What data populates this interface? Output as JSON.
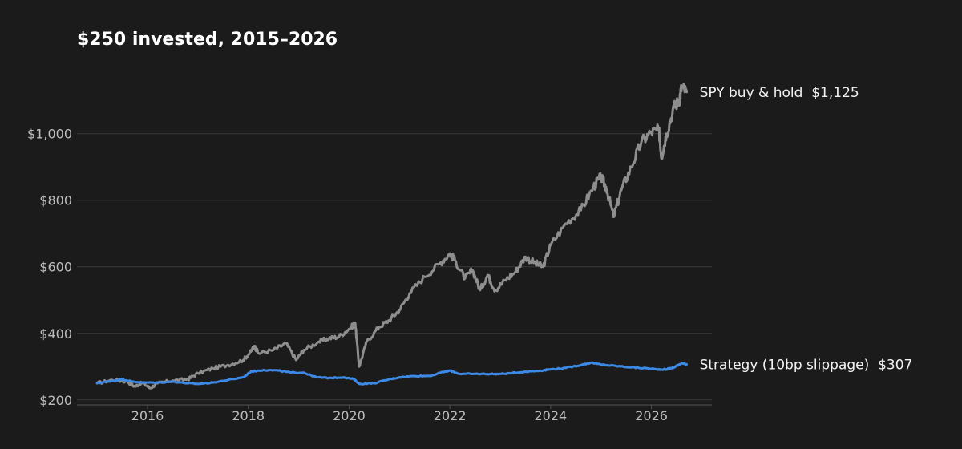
{
  "chart_data": {
    "type": "line",
    "title": "$250 invested, 2015–2026",
    "xlabel": "",
    "ylabel": "",
    "xlim": [
      2014.6,
      2027.2
    ],
    "ylim": [
      185,
      1180
    ],
    "grid": "horizontal",
    "legend": "inline-right",
    "y_ticks": [
      {
        "value": 200,
        "label": "$200"
      },
      {
        "value": 400,
        "label": "$400"
      },
      {
        "value": 600,
        "label": "$600"
      },
      {
        "value": 800,
        "label": "$800"
      },
      {
        "value": 1000,
        "label": "$1,000"
      }
    ],
    "x_ticks": [
      {
        "value": 2016,
        "label": "2016"
      },
      {
        "value": 2018,
        "label": "2018"
      },
      {
        "value": 2020,
        "label": "2020"
      },
      {
        "value": 2022,
        "label": "2022"
      },
      {
        "value": 2024,
        "label": "2024"
      },
      {
        "value": 2026,
        "label": "2026"
      }
    ],
    "series": [
      {
        "name": "SPY buy & hold",
        "end_label": "$1,125",
        "color": "#8e8e8e",
        "points": [
          [
            2015.0,
            250
          ],
          [
            2015.3,
            260
          ],
          [
            2015.6,
            255
          ],
          [
            2015.75,
            240
          ],
          [
            2015.9,
            252
          ],
          [
            2016.05,
            235
          ],
          [
            2016.2,
            250
          ],
          [
            2016.5,
            258
          ],
          [
            2016.8,
            262
          ],
          [
            2017.0,
            280
          ],
          [
            2017.3,
            295
          ],
          [
            2017.6,
            305
          ],
          [
            2017.9,
            320
          ],
          [
            2018.05,
            345
          ],
          [
            2018.12,
            362
          ],
          [
            2018.2,
            340
          ],
          [
            2018.5,
            350
          ],
          [
            2018.75,
            370
          ],
          [
            2018.95,
            320
          ],
          [
            2019.1,
            350
          ],
          [
            2019.4,
            375
          ],
          [
            2019.6,
            385
          ],
          [
            2019.8,
            390
          ],
          [
            2020.05,
            420
          ],
          [
            2020.12,
            432
          ],
          [
            2020.2,
            300
          ],
          [
            2020.35,
            375
          ],
          [
            2020.6,
            420
          ],
          [
            2020.8,
            440
          ],
          [
            2021.0,
            470
          ],
          [
            2021.2,
            520
          ],
          [
            2021.5,
            570
          ],
          [
            2021.8,
            610
          ],
          [
            2022.0,
            640
          ],
          [
            2022.1,
            620
          ],
          [
            2022.3,
            565
          ],
          [
            2022.45,
            590
          ],
          [
            2022.6,
            530
          ],
          [
            2022.75,
            575
          ],
          [
            2022.9,
            530
          ],
          [
            2023.1,
            560
          ],
          [
            2023.3,
            585
          ],
          [
            2023.5,
            630
          ],
          [
            2023.7,
            610
          ],
          [
            2023.85,
            600
          ],
          [
            2024.0,
            665
          ],
          [
            2024.3,
            730
          ],
          [
            2024.6,
            770
          ],
          [
            2024.85,
            840
          ],
          [
            2025.0,
            870
          ],
          [
            2025.1,
            840
          ],
          [
            2025.25,
            750
          ],
          [
            2025.4,
            830
          ],
          [
            2025.6,
            900
          ],
          [
            2025.8,
            975
          ],
          [
            2026.0,
            1005
          ],
          [
            2026.15,
            1010
          ],
          [
            2026.2,
            930
          ],
          [
            2026.3,
            1000
          ],
          [
            2026.45,
            1080
          ],
          [
            2026.55,
            1100
          ],
          [
            2026.6,
            1140
          ],
          [
            2026.7,
            1125
          ]
        ]
      },
      {
        "name": "Strategy (10bp slippage)",
        "end_label": "$307",
        "color": "#3d8ae6",
        "points": [
          [
            2015.0,
            250
          ],
          [
            2015.2,
            255
          ],
          [
            2015.5,
            262
          ],
          [
            2015.7,
            255
          ],
          [
            2015.9,
            252
          ],
          [
            2016.2,
            252
          ],
          [
            2016.5,
            255
          ],
          [
            2016.8,
            250
          ],
          [
            2017.0,
            248
          ],
          [
            2017.3,
            252
          ],
          [
            2017.6,
            260
          ],
          [
            2017.9,
            268
          ],
          [
            2018.05,
            285
          ],
          [
            2018.3,
            290
          ],
          [
            2018.6,
            288
          ],
          [
            2018.85,
            282
          ],
          [
            2019.1,
            282
          ],
          [
            2019.35,
            268
          ],
          [
            2019.6,
            266
          ],
          [
            2019.9,
            268
          ],
          [
            2020.1,
            262
          ],
          [
            2020.2,
            248
          ],
          [
            2020.5,
            250
          ],
          [
            2020.8,
            262
          ],
          [
            2021.0,
            268
          ],
          [
            2021.3,
            272
          ],
          [
            2021.6,
            272
          ],
          [
            2021.9,
            285
          ],
          [
            2022.0,
            288
          ],
          [
            2022.2,
            278
          ],
          [
            2022.5,
            278
          ],
          [
            2022.8,
            278
          ],
          [
            2023.0,
            278
          ],
          [
            2023.2,
            280
          ],
          [
            2023.5,
            285
          ],
          [
            2023.8,
            288
          ],
          [
            2024.0,
            292
          ],
          [
            2024.3,
            296
          ],
          [
            2024.6,
            305
          ],
          [
            2024.8,
            312
          ],
          [
            2025.0,
            306
          ],
          [
            2025.3,
            302
          ],
          [
            2025.6,
            298
          ],
          [
            2025.9,
            295
          ],
          [
            2026.1,
            292
          ],
          [
            2026.3,
            292
          ],
          [
            2026.45,
            298
          ],
          [
            2026.6,
            310
          ],
          [
            2026.7,
            307
          ]
        ]
      }
    ]
  }
}
